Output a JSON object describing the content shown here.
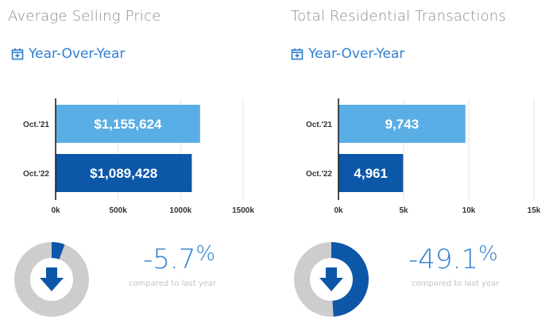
{
  "chart_data": [
    {
      "type": "bar",
      "orientation": "horizontal",
      "title": "Average Selling Price",
      "subtitle": "Year-Over-Year",
      "categories": [
        "Oct.'21",
        "Oct.'22"
      ],
      "values": [
        1155624,
        1089428
      ],
      "value_labels": [
        "$1,155,624",
        "$1,089,428"
      ],
      "bar_colors": [
        "#5aaee6",
        "#0d57a8"
      ],
      "xlim": [
        0,
        1500000
      ],
      "xticks": [
        0,
        500000,
        1000000,
        1500000
      ],
      "xtick_labels": [
        "0k",
        "500k",
        "1000k",
        "1500k"
      ],
      "change": {
        "value": "-5.7",
        "unit": "%",
        "fraction": 0.057,
        "note": "compared to last year"
      }
    },
    {
      "type": "bar",
      "orientation": "horizontal",
      "title": "Total Residential Transactions",
      "subtitle": "Year-Over-Year",
      "categories": [
        "Oct.'21",
        "Oct.'22"
      ],
      "values": [
        9743,
        4961
      ],
      "value_labels": [
        "9,743",
        "4,961"
      ],
      "bar_colors": [
        "#5aaee6",
        "#0d57a8"
      ],
      "xlim": [
        0,
        15000
      ],
      "xticks": [
        0,
        5000,
        10000,
        15000
      ],
      "xtick_labels": [
        "0k",
        "5k",
        "10k",
        "15k"
      ],
      "change": {
        "value": "-49.1",
        "unit": "%",
        "fraction": 0.491,
        "note": "compared to last year"
      }
    }
  ],
  "icons": {
    "calendar": "calendar-plus-icon",
    "arrow": "arrow-down-icon"
  },
  "colors": {
    "accent": "#2f7fd0",
    "dark_blue": "#0d57a8",
    "light_blue": "#5aaee6",
    "gauge_track": "#cdcdcd",
    "gauge_fill": "#0d57a8"
  }
}
